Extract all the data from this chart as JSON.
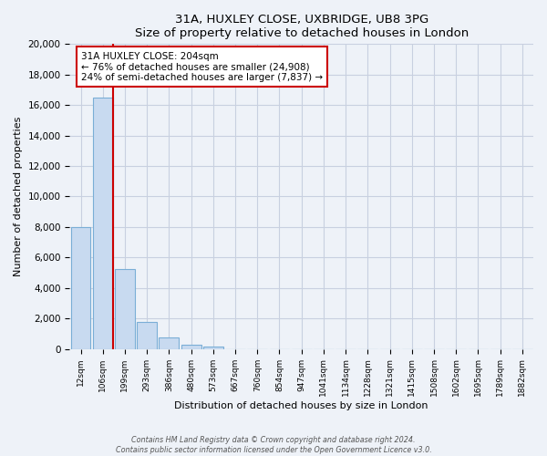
{
  "title": "31A, HUXLEY CLOSE, UXBRIDGE, UB8 3PG",
  "subtitle": "Size of property relative to detached houses in London",
  "xlabel": "Distribution of detached houses by size in London",
  "ylabel": "Number of detached properties",
  "bar_labels": [
    "12sqm",
    "106sqm",
    "199sqm",
    "293sqm",
    "386sqm",
    "480sqm",
    "573sqm",
    "667sqm",
    "760sqm",
    "854sqm",
    "947sqm",
    "1041sqm",
    "1134sqm",
    "1228sqm",
    "1321sqm",
    "1415sqm",
    "1508sqm",
    "1602sqm",
    "1695sqm",
    "1789sqm",
    "1882sqm"
  ],
  "bar_values": [
    8000,
    16500,
    5250,
    1750,
    750,
    250,
    150,
    0,
    0,
    0,
    0,
    0,
    0,
    0,
    0,
    0,
    0,
    0,
    0,
    0,
    0
  ],
  "bar_color": "#c8daf0",
  "bar_edge_color": "#7aaed6",
  "vline_color": "#cc0000",
  "ylim": [
    0,
    20000
  ],
  "yticks": [
    0,
    2000,
    4000,
    6000,
    8000,
    10000,
    12000,
    14000,
    16000,
    18000,
    20000
  ],
  "annotation_title": "31A HUXLEY CLOSE: 204sqm",
  "annotation_line1": "← 76% of detached houses are smaller (24,908)",
  "annotation_line2": "24% of semi-detached houses are larger (7,837) →",
  "footer_line1": "Contains HM Land Registry data © Crown copyright and database right 2024.",
  "footer_line2": "Contains public sector information licensed under the Open Government Licence v3.0.",
  "background_color": "#eef2f8",
  "plot_background_color": "#eef2f8",
  "grid_color": "#c8d0e0"
}
